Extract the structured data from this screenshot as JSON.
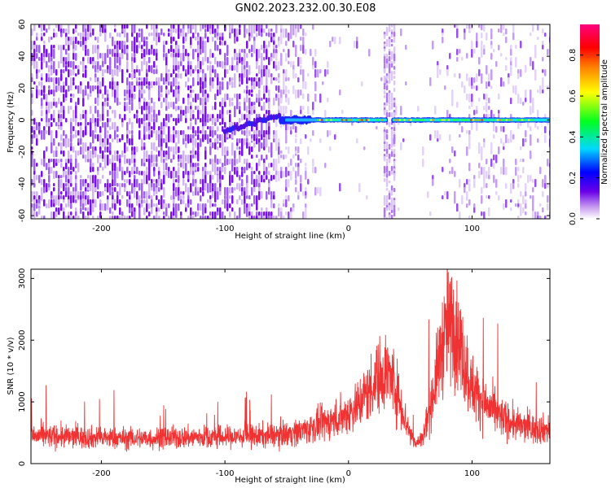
{
  "title": "GN02.2023.232.00.30.E08",
  "chart_data": [
    {
      "type": "heatmap",
      "xlabel": "Height of straight line (km)",
      "ylabel": "Frequency (Hz)",
      "xlim": [
        -257,
        163
      ],
      "ylim": [
        -62,
        60
      ],
      "xticks": [
        -200,
        -100,
        0,
        100
      ],
      "yticks": [
        60,
        40,
        20,
        0,
        -20,
        -40,
        -60
      ],
      "colorbar": {
        "label": "Normalized spectral amplitude",
        "range": [
          0,
          0.95
        ],
        "ticks": [
          0.0,
          0.2,
          0.4,
          0.6,
          0.8
        ],
        "colormap": [
          "#ffffff",
          "#c89cf0",
          "#6a00e8",
          "#0000ff",
          "#00d8ff",
          "#00ff20",
          "#ffff00",
          "#ff8000",
          "#ff0000",
          "#ff0080"
        ]
      },
      "features": {
        "signal_band_frequency_hz": 0,
        "signal_band_start_km": -55,
        "chirp_start_km": -100,
        "chirp_start_freq_hz": -7,
        "broadband_stripe_km": 33,
        "noise_dense_below_km": -35,
        "noise_sparse_above_km": 95
      }
    },
    {
      "type": "line",
      "xlabel": "Height of straight line (km)",
      "ylabel": "SNR (10 * v/v)",
      "xlim": [
        -257,
        163
      ],
      "ylim": [
        0,
        3150
      ],
      "xticks": [
        -200,
        -100,
        0,
        100
      ],
      "yticks": [
        0,
        1000,
        2000,
        3000
      ],
      "color": "#f03232",
      "series": [
        {
          "x": [
            -257,
            -240,
            -220,
            -200,
            -180,
            -160,
            -140,
            -120,
            -100,
            -80,
            -60,
            -40,
            -30,
            -20,
            -10,
            0,
            10,
            20,
            25,
            30,
            35,
            40,
            45,
            50,
            55,
            60,
            65,
            70,
            75,
            80,
            85,
            90,
            95,
            100,
            110,
            120,
            130,
            140,
            150,
            163
          ],
          "y": [
            450,
            440,
            430,
            420,
            410,
            410,
            420,
            430,
            430,
            440,
            460,
            520,
            580,
            650,
            720,
            820,
            1020,
            1280,
            1420,
            1500,
            1400,
            1120,
            780,
            480,
            320,
            420,
            800,
            1300,
            1850,
            2250,
            2250,
            1950,
            1550,
            1250,
            980,
            800,
            680,
            600,
            560,
            560
          ]
        }
      ]
    }
  ]
}
